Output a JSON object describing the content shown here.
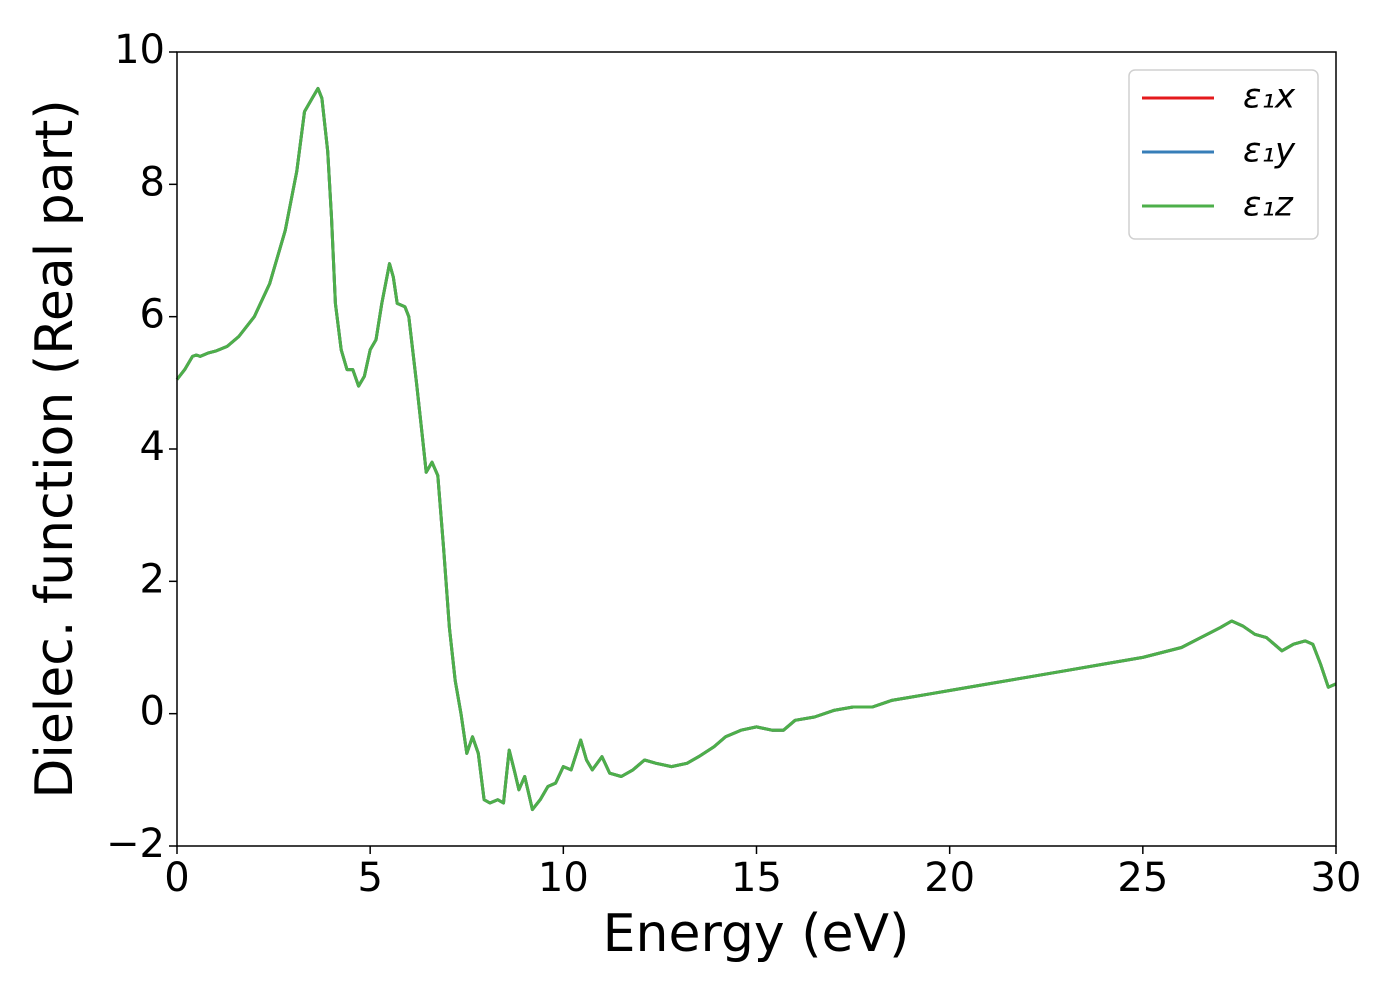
{
  "chart_data": {
    "type": "line",
    "xlabel": "Energy (eV)",
    "ylabel": "Dielec. function (Real part)",
    "xlim": [
      0,
      30
    ],
    "xticks": [
      0,
      5,
      10,
      15,
      20,
      25,
      30
    ],
    "ylim": [
      -2,
      10
    ],
    "yticks": [
      {
        "value": -2,
        "label": "−2"
      },
      0,
      2,
      4,
      6,
      8,
      10
    ],
    "legend": "upper right",
    "x": [
      0,
      0.2,
      0.4,
      0.5,
      0.6,
      0.8,
      1.0,
      1.3,
      1.6,
      2.0,
      2.4,
      2.8,
      3.1,
      3.3,
      3.5,
      3.65,
      3.75,
      3.9,
      4.0,
      4.1,
      4.25,
      4.4,
      4.55,
      4.7,
      4.85,
      5.0,
      5.15,
      5.3,
      5.5,
      5.6,
      5.7,
      5.9,
      6.0,
      6.2,
      6.35,
      6.45,
      6.6,
      6.75,
      6.9,
      7.05,
      7.2,
      7.35,
      7.5,
      7.65,
      7.8,
      7.95,
      8.1,
      8.3,
      8.45,
      8.6,
      8.75,
      8.85,
      9.0,
      9.1,
      9.2,
      9.4,
      9.6,
      9.8,
      10.0,
      10.2,
      10.45,
      10.6,
      10.75,
      11.0,
      11.2,
      11.5,
      11.8,
      12.1,
      12.4,
      12.8,
      13.2,
      13.5,
      13.9,
      14.2,
      14.6,
      15.0,
      15.4,
      15.7,
      16.0,
      16.5,
      17.0,
      17.5,
      18.0,
      18.5,
      19.0,
      19.5,
      20.0,
      21.0,
      22.0,
      23.0,
      24.0,
      25.0,
      26.0,
      26.5,
      27.0,
      27.3,
      27.6,
      27.9,
      28.2,
      28.4,
      28.6,
      28.9,
      29.2,
      29.4,
      29.6,
      29.8,
      30.0
    ],
    "series": [
      {
        "name": "ε₁x",
        "color": "#e41a1c",
        "values": [
          5.05,
          5.2,
          5.4,
          5.42,
          5.4,
          5.45,
          5.48,
          5.55,
          5.7,
          6.0,
          6.5,
          7.3,
          8.2,
          9.1,
          9.3,
          9.45,
          9.3,
          8.5,
          7.5,
          6.2,
          5.5,
          5.2,
          5.2,
          4.95,
          5.1,
          5.5,
          5.65,
          6.2,
          6.8,
          6.6,
          6.2,
          6.15,
          6.0,
          5.0,
          4.2,
          3.65,
          3.8,
          3.6,
          2.5,
          1.3,
          0.5,
          0.0,
          -0.6,
          -0.35,
          -0.6,
          -1.3,
          -1.35,
          -1.3,
          -1.35,
          -0.55,
          -0.9,
          -1.15,
          -0.95,
          -1.2,
          -1.45,
          -1.3,
          -1.1,
          -1.05,
          -0.8,
          -0.85,
          -0.4,
          -0.7,
          -0.85,
          -0.65,
          -0.9,
          -0.95,
          -0.85,
          -0.7,
          -0.75,
          -0.8,
          -0.75,
          -0.65,
          -0.5,
          -0.35,
          -0.25,
          -0.2,
          -0.25,
          -0.25,
          -0.1,
          -0.05,
          0.05,
          0.1,
          0.1,
          0.2,
          0.25,
          0.3,
          0.35,
          0.45,
          0.55,
          0.65,
          0.75,
          0.85,
          1.0,
          1.15,
          1.3,
          1.4,
          1.32,
          1.2,
          1.15,
          1.05,
          0.95,
          1.05,
          1.1,
          1.05,
          0.75,
          0.4,
          0.45
        ]
      },
      {
        "name": "ε₁y",
        "color": "#377eb8",
        "values": [
          5.05,
          5.2,
          5.4,
          5.42,
          5.4,
          5.45,
          5.48,
          5.55,
          5.7,
          6.0,
          6.5,
          7.3,
          8.2,
          9.1,
          9.3,
          9.45,
          9.3,
          8.5,
          7.5,
          6.2,
          5.5,
          5.2,
          5.2,
          4.95,
          5.1,
          5.5,
          5.65,
          6.2,
          6.8,
          6.6,
          6.2,
          6.15,
          6.0,
          5.0,
          4.2,
          3.65,
          3.8,
          3.6,
          2.5,
          1.3,
          0.5,
          0.0,
          -0.6,
          -0.35,
          -0.6,
          -1.3,
          -1.35,
          -1.3,
          -1.35,
          -0.55,
          -0.9,
          -1.15,
          -0.95,
          -1.2,
          -1.45,
          -1.3,
          -1.1,
          -1.05,
          -0.8,
          -0.85,
          -0.4,
          -0.7,
          -0.85,
          -0.65,
          -0.9,
          -0.95,
          -0.85,
          -0.7,
          -0.75,
          -0.8,
          -0.75,
          -0.65,
          -0.5,
          -0.35,
          -0.25,
          -0.2,
          -0.25,
          -0.25,
          -0.1,
          -0.05,
          0.05,
          0.1,
          0.1,
          0.2,
          0.25,
          0.3,
          0.35,
          0.45,
          0.55,
          0.65,
          0.75,
          0.85,
          1.0,
          1.15,
          1.3,
          1.4,
          1.32,
          1.2,
          1.15,
          1.05,
          0.95,
          1.05,
          1.1,
          1.05,
          0.75,
          0.4,
          0.45
        ]
      },
      {
        "name": "ε₁z",
        "color": "#4daf4a",
        "values": [
          5.05,
          5.2,
          5.4,
          5.42,
          5.4,
          5.45,
          5.48,
          5.55,
          5.7,
          6.0,
          6.5,
          7.3,
          8.2,
          9.1,
          9.3,
          9.45,
          9.3,
          8.5,
          7.5,
          6.2,
          5.5,
          5.2,
          5.2,
          4.95,
          5.1,
          5.5,
          5.65,
          6.2,
          6.8,
          6.6,
          6.2,
          6.15,
          6.0,
          5.0,
          4.2,
          3.65,
          3.8,
          3.6,
          2.5,
          1.3,
          0.5,
          0.0,
          -0.6,
          -0.35,
          -0.6,
          -1.3,
          -1.35,
          -1.3,
          -1.35,
          -0.55,
          -0.9,
          -1.15,
          -0.95,
          -1.2,
          -1.45,
          -1.3,
          -1.1,
          -1.05,
          -0.8,
          -0.85,
          -0.4,
          -0.7,
          -0.85,
          -0.65,
          -0.9,
          -0.95,
          -0.85,
          -0.7,
          -0.75,
          -0.8,
          -0.75,
          -0.65,
          -0.5,
          -0.35,
          -0.25,
          -0.2,
          -0.25,
          -0.25,
          -0.1,
          -0.05,
          0.05,
          0.1,
          0.1,
          0.2,
          0.25,
          0.3,
          0.35,
          0.45,
          0.55,
          0.65,
          0.75,
          0.85,
          1.0,
          1.15,
          1.3,
          1.4,
          1.32,
          1.2,
          1.15,
          1.05,
          0.95,
          1.05,
          1.1,
          1.05,
          0.75,
          0.4,
          0.45
        ]
      }
    ]
  }
}
